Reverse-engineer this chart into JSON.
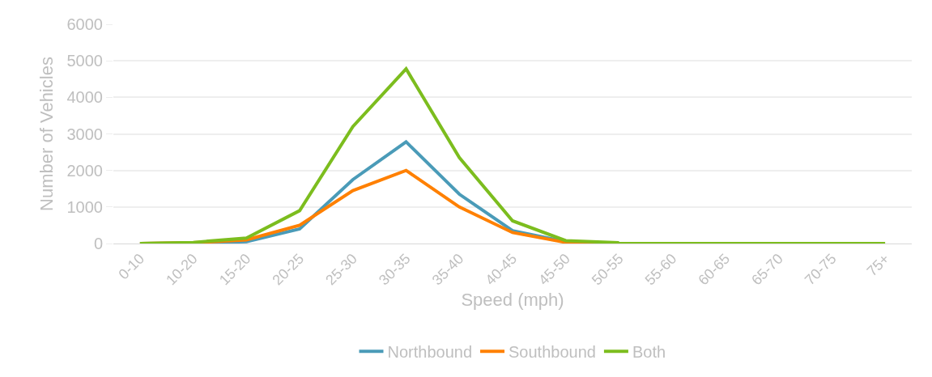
{
  "chart_data": {
    "type": "line",
    "xlabel": "Speed (mph)",
    "ylabel": "Number of Vehicles",
    "categories": [
      "0-10",
      "10-20",
      "15-20",
      "20-25",
      "25-30",
      "30-35",
      "35-40",
      "40-45",
      "45-50",
      "50-55",
      "55-60",
      "60-65",
      "65-70",
      "70-75",
      "75+"
    ],
    "series": [
      {
        "name": "Northbound",
        "color": "#4a9bb8",
        "values": [
          0,
          10,
          50,
          400,
          1750,
          2780,
          1350,
          350,
          50,
          0,
          null,
          null,
          null,
          null,
          null
        ]
      },
      {
        "name": "Southbound",
        "color": "#ff8000",
        "values": [
          0,
          20,
          100,
          500,
          1450,
          2000,
          1000,
          300,
          30,
          0,
          null,
          null,
          null,
          null,
          null
        ]
      },
      {
        "name": "Both",
        "color": "#7cbd1e",
        "values": [
          0,
          30,
          150,
          900,
          3200,
          4780,
          2350,
          620,
          80,
          20,
          0,
          0,
          0,
          0,
          0
        ]
      }
    ],
    "ylim": [
      0,
      6000
    ],
    "yticks": [
      0,
      1000,
      2000,
      3000,
      4000,
      5000,
      6000
    ],
    "grid": "y",
    "legend": "bottom",
    "marker": "none",
    "line_style": "solid"
  }
}
